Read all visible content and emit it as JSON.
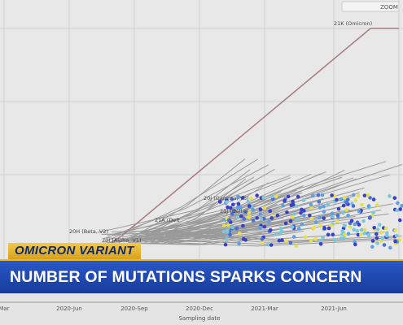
{
  "controls": {
    "zoom": "ZOOM"
  },
  "clades": [
    "21K (Omicron)",
    "20J (Gamma, V3)",
    "21A (Delt",
    "21J (Delta)",
    "20H (Beta, V2)",
    "20I (Alpha, V1)"
  ],
  "x_axis": {
    "ticks": [
      "Mar",
      "2020-Jun",
      "2020-Sep",
      "2020-Dec",
      "2021-Mar",
      "2021-Jun"
    ],
    "title": "Sampling date"
  },
  "lower_third": {
    "kicker": "OMICRON VARIANT",
    "headline": "NUMBER OF MUTATIONS SPARKS CONCERN"
  }
}
